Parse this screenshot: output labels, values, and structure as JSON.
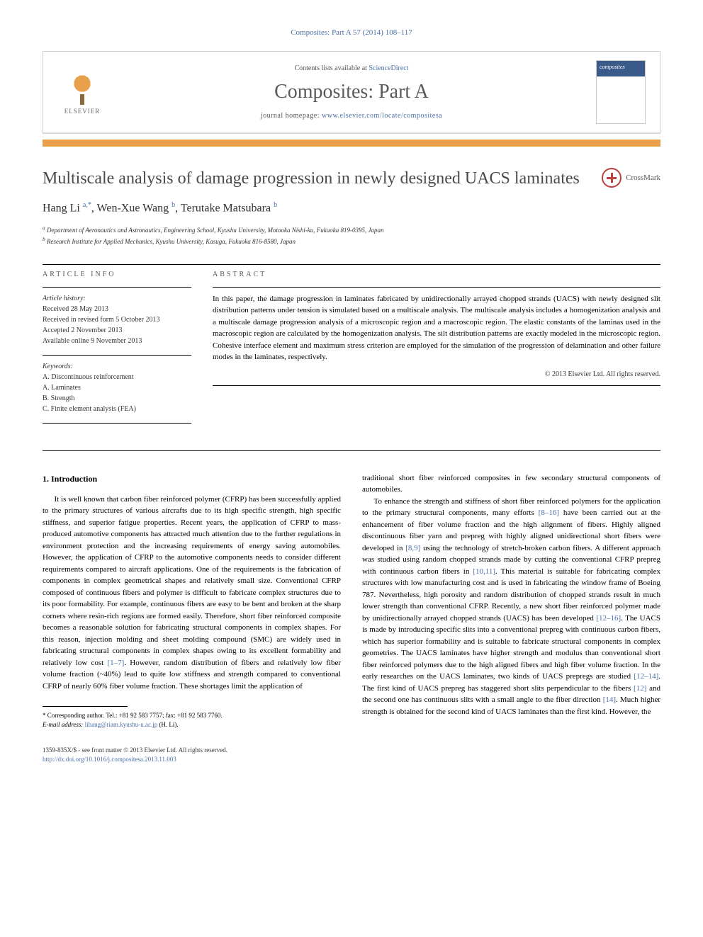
{
  "citation": "Composites: Part A 57 (2014) 108–117",
  "header": {
    "contents_prefix": "Contents lists available at ",
    "contents_link": "ScienceDirect",
    "journal_name": "Composites: Part A",
    "homepage_prefix": "journal homepage: ",
    "homepage_url": "www.elsevier.com/locate/compositesa",
    "publisher": "ELSEVIER",
    "cover_label": "composites"
  },
  "crossmark_label": "CrossMark",
  "title": "Multiscale analysis of damage progression in newly designed UACS laminates",
  "authors_html": "Hang Li <sup>a,</sup>*, Wen-Xue Wang <sup>b</sup>, Terutake Matsubara <sup>b</sup>",
  "authors": [
    {
      "name": "Hang Li",
      "marks": "a,*"
    },
    {
      "name": "Wen-Xue Wang",
      "marks": "b"
    },
    {
      "name": "Terutake Matsubara",
      "marks": "b"
    }
  ],
  "affiliations": [
    {
      "mark": "a",
      "text": "Department of Aeronautics and Astronautics, Engineering School, Kyushu University, Motooka Nishi-ku, Fukuoka 819-0395, Japan"
    },
    {
      "mark": "b",
      "text": "Research Institute for Applied Mechanics, Kyushu University, Kasuga, Fukuoka 816-8580, Japan"
    }
  ],
  "article_info": {
    "heading": "ARTICLE INFO",
    "history_label": "Article history:",
    "history": [
      "Received 28 May 2013",
      "Received in revised form 5 October 2013",
      "Accepted 2 November 2013",
      "Available online 9 November 2013"
    ],
    "keywords_label": "Keywords:",
    "keywords": [
      "A. Discontinuous reinforcement",
      "A. Laminates",
      "B. Strength",
      "C. Finite element analysis (FEA)"
    ]
  },
  "abstract": {
    "heading": "ABSTRACT",
    "text": "In this paper, the damage progression in laminates fabricated by unidirectionally arrayed chopped strands (UACS) with newly designed slit distribution patterns under tension is simulated based on a multiscale analysis. The multiscale analysis includes a homogenization analysis and a multiscale damage progression analysis of a microscopic region and a macroscopic region. The elastic constants of the laminas used in the macroscopic region are calculated by the homogenization analysis. The silt distribution patterns are exactly modeled in the microscopic region. Cohesive interface element and maximum stress criterion are employed for the simulation of the progression of delamination and other failure modes in the laminates, respectively.",
    "copyright": "© 2013 Elsevier Ltd. All rights reserved."
  },
  "body": {
    "section_heading": "1. Introduction",
    "col1_p1": "It is well known that carbon fiber reinforced polymer (CFRP) has been successfully applied to the primary structures of various aircrafts due to its high specific strength, high specific stiffness, and superior fatigue properties. Recent years, the application of CFRP to mass-produced automotive components has attracted much attention due to the further regulations in environment protection and the increasing requirements of energy saving automobiles. However, the application of CFRP to the automotive components needs to consider different requirements compared to aircraft applications. One of the requirements is the fabrication of components in complex geometrical shapes and relatively small size. Conventional CFRP composed of continuous fibers and polymer is difficult to fabricate complex structures due to its poor formability. For example, continuous fibers are easy to be bent and broken at the sharp corners where resin-rich regions are formed easily. Therefore, short fiber reinforced composite becomes a reasonable solution for fabricating structural components in complex shapes. For this reason, injection molding and sheet molding compound (SMC) are widely used in fabricating structural components in complex shapes owing to its excellent formability and relatively low cost [1–7]. However, random distribution of fibers and relatively low fiber volume fraction (~40%) lead to quite low stiffness and strength compared to conventional CFRP of nearly 60% fiber volume fraction. These shortages limit the application of",
    "col2_p1_lead": "traditional short fiber reinforced composites in few secondary structural components of automobiles.",
    "col2_p2": "To enhance the strength and stiffness of short fiber reinforced polymers for the application to the primary structural components, many efforts [8–16] have been carried out at the enhancement of fiber volume fraction and the high alignment of fibers. Highly aligned discontinuous fiber yarn and prepreg with highly aligned unidirectional short fibers were developed in [8,9] using the technology of stretch-broken carbon fibers. A different approach was studied using random chopped strands made by cutting the conventional CFRP prepreg with continuous carbon fibers in [10,11]. This material is suitable for fabricating complex structures with low manufacturing cost and is used in fabricating the window frame of Boeing 787. Nevertheless, high porosity and random distribution of chopped strands result in much lower strength than conventional CFRP. Recently, a new short fiber reinforced polymer made by unidirectionally arrayed chopped strands (UACS) has been developed [12–16]. The UACS is made by introducing specific slits into a conventional prepreg with continuous carbon fibers, which has superior formability and is suitable to fabricate structural components in complex geometries. The UACS laminates have higher strength and modulus than conventional short fiber reinforced polymers due to the high aligned fibers and high fiber volume fraction. In the early researches on the UACS laminates, two kinds of UACS prepregs are studied [12–14]. The first kind of UACS prepreg has staggered short slits perpendicular to the fibers [12] and the second one has continuous slits with a small angle to the fiber direction [14]. Much higher strength is obtained for the second kind of UACS laminates than the first kind. However, the"
  },
  "footnote": {
    "corr": "* Corresponding author. Tel.: +81 92 583 7757; fax: +81 92 583 7760.",
    "email_label": "E-mail address:",
    "email": "lihang@riam.kyushu-u.ac.jp",
    "email_name": "(H. Li)."
  },
  "footer": {
    "issn": "1359-835X/$ - see front matter © 2013 Elsevier Ltd. All rights reserved.",
    "doi": "http://dx.doi.org/10.1016/j.compositesa.2013.11.003"
  },
  "colors": {
    "link": "#4a6ea8",
    "orange_bar": "#e8a04a",
    "text": "#000000",
    "muted": "#555555"
  }
}
